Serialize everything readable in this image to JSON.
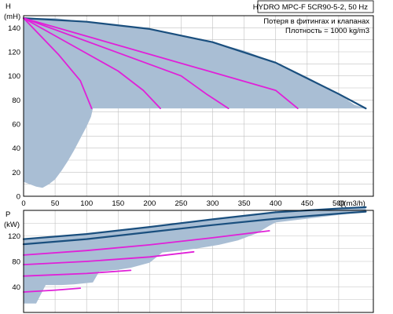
{
  "colors": {
    "fill_area": "#a9bed4",
    "max_curve": "#1a4f7e",
    "partial_curve": "#e020d8",
    "grid": "#c0c0c0",
    "axis": "#000000",
    "background": "#ffffff"
  },
  "chart_data": [
    {
      "id": "head",
      "type": "line",
      "title": "HYDRO MPC-F 5CR90-5-2, 50 Hz",
      "annotations": [
        "Потеря в фитингах и клапанах",
        "Плотность = 1000 kg/m3"
      ],
      "ylabel_top": "H",
      "ylabel_bottom": "(mH)",
      "xlabel": "Q(m3/h)",
      "xlim": [
        0,
        555
      ],
      "ylim": [
        0,
        150
      ],
      "xticks": [
        0,
        50,
        100,
        150,
        200,
        250,
        300,
        350,
        400,
        450,
        500
      ],
      "yticks": [
        0,
        20,
        40,
        60,
        80,
        100,
        120,
        140
      ],
      "grid": true,
      "region": {
        "upper": [
          [
            0,
            148
          ],
          [
            50,
            148
          ],
          [
            100,
            145
          ],
          [
            150,
            142
          ],
          [
            200,
            139
          ],
          [
            250,
            134
          ],
          [
            300,
            128
          ],
          [
            350,
            121
          ],
          [
            400,
            111
          ],
          [
            450,
            99
          ],
          [
            500,
            85
          ],
          [
            525,
            76
          ],
          [
            543,
            73
          ]
        ],
        "lower": [
          [
            543,
            73
          ],
          [
            110,
            73
          ],
          [
            107,
            66
          ],
          [
            100,
            58
          ],
          [
            90,
            48
          ],
          [
            80,
            38
          ],
          [
            70,
            29
          ],
          [
            60,
            21
          ],
          [
            50,
            14
          ],
          [
            40,
            10
          ],
          [
            30,
            7
          ],
          [
            20,
            8
          ],
          [
            10,
            10
          ],
          [
            0,
            12
          ]
        ]
      },
      "series": [
        {
          "x": [
            0,
            100,
            200,
            300,
            400,
            500,
            543
          ],
          "y": [
            148,
            145,
            139,
            128,
            111,
            85,
            73
          ],
          "style": "max"
        },
        {
          "x": [
            0,
            400,
            435
          ],
          "y": [
            148,
            88,
            73
          ],
          "style": "partial"
        },
        {
          "x": [
            0,
            250,
            290,
            325
          ],
          "y": [
            148,
            100,
            85,
            73
          ],
          "style": "partial"
        },
        {
          "x": [
            0,
            150,
            190,
            217
          ],
          "y": [
            148,
            104,
            88,
            73
          ],
          "style": "partial"
        },
        {
          "x": [
            0,
            55,
            90,
            108
          ],
          "y": [
            148,
            118,
            96,
            73
          ],
          "style": "partial"
        }
      ]
    },
    {
      "id": "power",
      "type": "line",
      "ylabel_top": "P",
      "ylabel_bottom": "(kW)",
      "xlim": [
        0,
        555
      ],
      "ylim": [
        0,
        160
      ],
      "yticks": [
        40,
        80,
        120
      ],
      "grid": true,
      "region": {
        "upper": [
          [
            0,
            115
          ],
          [
            50,
            118
          ],
          [
            100,
            123
          ],
          [
            150,
            128
          ],
          [
            200,
            134
          ],
          [
            250,
            139
          ],
          [
            300,
            146
          ],
          [
            350,
            152
          ],
          [
            400,
            157
          ],
          [
            450,
            160
          ],
          [
            500,
            163
          ],
          [
            543,
            165
          ]
        ],
        "lower": [
          [
            543,
            158
          ],
          [
            500,
            153
          ],
          [
            450,
            147
          ],
          [
            400,
            141
          ],
          [
            390,
            136
          ],
          [
            370,
            124
          ],
          [
            340,
            113
          ],
          [
            310,
            106
          ],
          [
            280,
            101
          ],
          [
            250,
            97
          ],
          [
            220,
            94
          ],
          [
            200,
            78
          ],
          [
            170,
            70
          ],
          [
            150,
            67
          ],
          [
            120,
            64
          ],
          [
            110,
            47
          ],
          [
            80,
            44
          ],
          [
            60,
            43
          ],
          [
            35,
            43
          ],
          [
            20,
            14
          ],
          [
            0,
            14
          ]
        ]
      },
      "series": [
        {
          "x": [
            0,
            100,
            200,
            300,
            400,
            500,
            543
          ],
          "y": [
            115,
            123,
            134,
            146,
            157,
            163,
            165
          ],
          "style": "max"
        },
        {
          "x": [
            0,
            100,
            200,
            300,
            400,
            500,
            543
          ],
          "y": [
            107,
            115,
            126,
            137,
            147,
            155,
            158
          ],
          "style": "max"
        },
        {
          "x": [
            0,
            100,
            200,
            300,
            390
          ],
          "y": [
            90,
            97,
            106,
            117,
            128
          ],
          "style": "partial"
        },
        {
          "x": [
            0,
            100,
            200,
            270
          ],
          "y": [
            75,
            80,
            87,
            95
          ],
          "style": "partial"
        },
        {
          "x": [
            0,
            100,
            170
          ],
          "y": [
            57,
            61,
            66
          ],
          "style": "partial"
        },
        {
          "x": [
            0,
            50,
            90
          ],
          "y": [
            32,
            35,
            38
          ],
          "style": "partial"
        }
      ]
    }
  ]
}
